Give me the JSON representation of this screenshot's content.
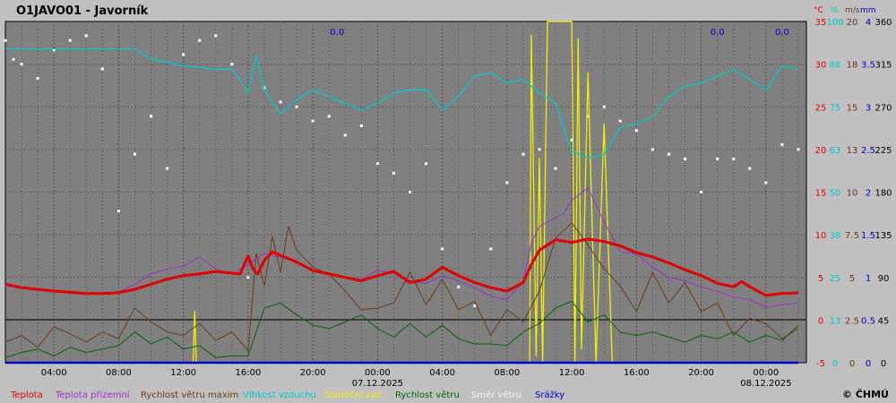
{
  "station": {
    "title": "O1JAVO01 - Javorník"
  },
  "copyright": "© ČHMÚ",
  "units": [
    "°C",
    "%",
    "m/s",
    "mm"
  ],
  "chart_data": {
    "type": "line",
    "title": "O1JAVO01 - Javorník",
    "x_start": "2025-12-06 01:00",
    "x_end": "2025-12-08 12:00",
    "x_ticks": [
      "04:00",
      "08:00",
      "12:00",
      "16:00",
      "20:00",
      "00:00",
      "04:00",
      "08:00",
      "12:00",
      "16:00",
      "20:00",
      "00:00"
    ],
    "x_tick_hours": [
      4,
      8,
      12,
      16,
      20,
      24,
      28,
      32,
      36,
      40,
      44,
      48
    ],
    "date_labels": [
      {
        "text": "07.12.2025",
        "hour": 24
      },
      {
        "text": "08.12.2025",
        "hour": 48
      }
    ],
    "precip_labels": [
      {
        "text": "0.0",
        "hour": 21.5
      },
      {
        "text": "0.0",
        "hour": 45
      },
      {
        "text": "0.0",
        "hour": 49
      }
    ],
    "axes": [
      {
        "name": "temperature",
        "unit": "°C",
        "color": "#e00000",
        "ylim": [
          -5,
          35
        ],
        "ticks": [
          "-5",
          "0",
          "5",
          "10",
          "15",
          "20",
          "25",
          "30",
          "35"
        ]
      },
      {
        "name": "humidity",
        "unit": "%",
        "color": "#00c8c8",
        "ylim": [
          0,
          100
        ],
        "ticks": [
          "0",
          "13",
          "25",
          "38",
          "50",
          "63",
          "75",
          "88",
          "100"
        ]
      },
      {
        "name": "wind_speed",
        "unit": "m/s",
        "color": "#6b3a1a",
        "ylim": [
          0,
          20
        ],
        "ticks": [
          "0",
          "2.5",
          "5",
          "7.5",
          "10",
          "13",
          "15",
          "18",
          "20"
        ]
      },
      {
        "name": "precipitation",
        "unit": "mm",
        "color": "#0000c8",
        "ylim": [
          0,
          4
        ],
        "ticks": [
          "0",
          "0.5",
          "1",
          "1.5",
          "2",
          "2.5",
          "3",
          "3.5",
          "4"
        ]
      },
      {
        "name": "wind_direction",
        "unit": "",
        "color": "#000000",
        "ylim": [
          0,
          360
        ],
        "ticks": [
          "0",
          "45",
          "90",
          "135",
          "180",
          "225",
          "270",
          "315",
          "360"
        ]
      }
    ],
    "series": [
      {
        "name": "Teplota",
        "color": "#e00000",
        "axis": "temperature",
        "x": [
          1,
          2,
          4,
          6,
          7,
          8,
          9,
          10,
          11,
          12,
          13,
          14,
          15,
          15.5,
          16,
          16.3,
          16.6,
          17,
          17.5,
          18,
          19,
          20,
          21,
          22,
          23,
          24,
          25,
          26,
          27,
          28,
          29,
          30,
          31,
          32,
          33,
          33.5,
          34,
          35,
          36,
          37,
          38,
          39,
          40,
          41,
          42,
          43,
          44,
          45,
          46,
          46.5,
          47,
          48,
          49,
          50
        ],
        "y": [
          4.2,
          3.8,
          3.4,
          3.1,
          3.1,
          3.2,
          3.6,
          4.2,
          4.8,
          5.2,
          5.4,
          5.7,
          5.5,
          5.4,
          7.5,
          6.0,
          5.4,
          7.0,
          8.0,
          7.6,
          6.8,
          5.8,
          5.4,
          5.0,
          4.6,
          5.2,
          5.7,
          4.4,
          4.8,
          6.2,
          5.2,
          4.4,
          3.8,
          3.4,
          4.4,
          6.5,
          8.2,
          9.4,
          9.1,
          9.5,
          9.2,
          8.7,
          7.9,
          7.4,
          6.7,
          5.9,
          5.2,
          4.3,
          3.9,
          4.5,
          3.9,
          2.9,
          3.1,
          3.2
        ]
      },
      {
        "name": "Teplota přízemní",
        "color": "#9c2fc8",
        "axis": "temperature",
        "x": [
          1,
          3,
          5,
          6,
          7,
          8,
          9,
          10,
          11,
          12,
          13,
          14,
          15,
          16,
          17,
          18,
          19,
          20,
          21,
          22,
          23,
          24,
          25,
          26,
          27,
          28,
          29,
          30,
          31,
          32,
          33,
          33.5,
          34,
          35,
          35.5,
          36,
          37,
          38,
          39,
          40,
          41,
          42,
          43,
          44,
          45,
          46,
          47,
          48,
          49,
          50
        ],
        "y": [
          4.0,
          3.5,
          3.2,
          3.1,
          3.1,
          3.3,
          4.2,
          5.4,
          6.0,
          6.3,
          7.4,
          6.0,
          5.4,
          6.5,
          7.8,
          7.4,
          6.8,
          5.8,
          5.4,
          5.0,
          4.8,
          5.8,
          5.5,
          4.6,
          4.3,
          5.2,
          4.6,
          3.8,
          2.8,
          2.4,
          4.5,
          9.0,
          11.0,
          12.0,
          12.5,
          14.0,
          15.5,
          11.5,
          8.0,
          7.8,
          6.2,
          5.0,
          4.6,
          3.9,
          3.4,
          2.7,
          2.4,
          1.5,
          1.8,
          2.0
        ]
      },
      {
        "name": "Rychlost větru maxim",
        "color": "#6b3a1a",
        "axis": "wind_speed",
        "x": [
          1,
          2,
          3,
          4,
          5,
          6,
          7,
          8,
          9,
          10,
          11,
          12,
          13,
          14,
          15,
          16,
          16.5,
          17,
          17.5,
          18,
          18.5,
          19,
          20,
          21,
          22,
          23,
          24,
          25,
          26,
          27,
          28,
          29,
          30,
          31,
          32,
          33,
          34,
          35,
          36,
          37,
          38,
          39,
          40,
          41,
          42,
          43,
          44,
          45,
          46,
          47,
          48,
          49,
          50
        ],
        "y": [
          1.2,
          1.6,
          0.9,
          2.1,
          1.7,
          1.2,
          1.8,
          1.4,
          3.2,
          2.4,
          1.8,
          1.6,
          2.3,
          1.3,
          1.8,
          0.7,
          6.4,
          4.5,
          7.4,
          5.3,
          8.0,
          6.6,
          5.6,
          5.2,
          4.2,
          3.1,
          3.2,
          3.5,
          5.3,
          3.4,
          4.9,
          3.1,
          3.6,
          1.6,
          3.1,
          2.4,
          4.2,
          7.3,
          8.2,
          6.9,
          5.5,
          4.5,
          3.0,
          5.3,
          3.5,
          4.7,
          3.0,
          3.5,
          1.6,
          2.6,
          2.3,
          1.4,
          2.0
        ]
      },
      {
        "name": "Vlhkost vzduchu",
        "color": "#00c8c8",
        "axis": "humidity",
        "x": [
          1,
          8,
          9,
          10,
          12,
          14,
          15,
          15.5,
          16,
          16.5,
          17,
          18,
          19,
          20,
          21,
          22,
          23,
          24,
          25,
          26,
          27,
          28,
          29,
          30,
          31,
          32,
          33,
          34,
          35,
          36,
          37,
          38,
          39,
          40,
          41,
          42,
          43,
          44,
          45,
          46,
          47,
          48,
          49,
          50
        ],
        "y": [
          92,
          92,
          92,
          89,
          87,
          86,
          86,
          83,
          79,
          90,
          80,
          73,
          77,
          80,
          78,
          76,
          74,
          76,
          79,
          80,
          80,
          74,
          78,
          84,
          85,
          82,
          83,
          79,
          76,
          62,
          60,
          61,
          69,
          70,
          72,
          78,
          81,
          82,
          84,
          86,
          83,
          80,
          87,
          86
        ]
      },
      {
        "name": "Sluneční svit",
        "color": "#f0f000",
        "axis": "humidity",
        "x": [
          12.6,
          12.7,
          12.8,
          13.0,
          33.4,
          33.5,
          33.8,
          34.0,
          34.2,
          34.5,
          35.0,
          36.0,
          36.2,
          36.4,
          36.6,
          37.0,
          37.5,
          38.0,
          38.5,
          39.0
        ],
        "y": [
          0,
          15,
          0,
          0,
          0,
          96,
          2,
          60,
          0,
          100,
          100,
          100,
          0,
          95,
          4,
          85,
          0,
          70,
          0,
          0
        ]
      },
      {
        "name": "Rychlost větru",
        "color": "#006400",
        "axis": "wind_speed",
        "x": [
          1,
          2,
          3,
          4,
          5,
          6,
          7,
          8,
          9,
          10,
          11,
          12,
          13,
          14,
          15,
          16,
          17,
          18,
          19,
          20,
          21,
          22,
          23,
          24,
          25,
          26,
          27,
          28,
          29,
          30,
          31,
          32,
          33,
          34,
          35,
          36,
          37,
          38,
          39,
          40,
          41,
          42,
          43,
          44,
          45,
          46,
          47,
          48,
          49,
          50
        ],
        "y": [
          0.3,
          0.6,
          0.8,
          0.4,
          0.9,
          0.6,
          0.8,
          1.0,
          1.8,
          1.1,
          1.5,
          0.8,
          1.0,
          0.3,
          0.4,
          0.4,
          3.2,
          3.5,
          2.8,
          2.2,
          2.0,
          2.4,
          2.8,
          2.0,
          1.5,
          2.3,
          1.5,
          2.2,
          1.4,
          1.1,
          1.1,
          1.0,
          1.8,
          2.3,
          3.2,
          3.6,
          2.4,
          2.8,
          1.8,
          1.6,
          1.8,
          1.5,
          1.2,
          1.6,
          1.4,
          1.8,
          1.2,
          1.6,
          1.3,
          2.2
        ]
      },
      {
        "name": "Směr větru",
        "color": "#ffffff",
        "axis": "wind_direction",
        "x": [
          1,
          1.5,
          2,
          3,
          4,
          5,
          6,
          7,
          8,
          9,
          10,
          11,
          12,
          13,
          14,
          15,
          16,
          17,
          18,
          19,
          20,
          21,
          22,
          23,
          24,
          25,
          26,
          27,
          28,
          29,
          30,
          31,
          32,
          33,
          34,
          35,
          36,
          37,
          38,
          39,
          40,
          41,
          42,
          43,
          44,
          45,
          46,
          47,
          48,
          49,
          50
        ],
        "y": [
          340,
          320,
          315,
          300,
          330,
          340,
          345,
          310,
          160,
          220,
          260,
          205,
          325,
          340,
          345,
          315,
          90,
          290,
          275,
          270,
          255,
          260,
          240,
          250,
          210,
          200,
          180,
          210,
          120,
          80,
          60,
          120,
          190,
          220,
          225,
          205,
          235,
          260,
          270,
          255,
          245,
          225,
          220,
          215,
          180,
          215,
          215,
          205,
          190,
          230,
          225
        ]
      },
      {
        "name": "Srážky",
        "color": "#0000c8",
        "axis": "precipitation",
        "x": [
          1,
          50
        ],
        "y": [
          0,
          0
        ]
      }
    ]
  }
}
